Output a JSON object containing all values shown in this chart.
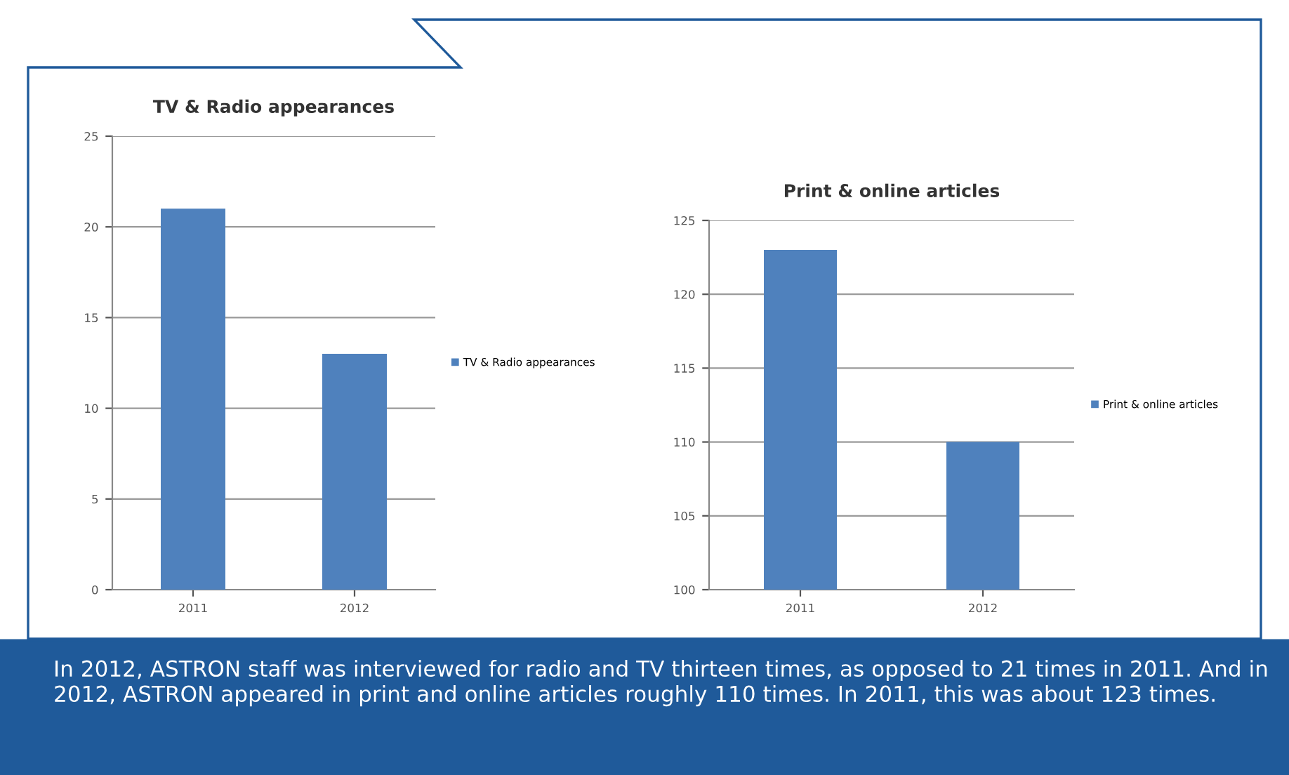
{
  "chart_data": [
    {
      "type": "bar",
      "title": "TV & Radio appearances",
      "categories": [
        "2011",
        "2012"
      ],
      "series": [
        {
          "name": "TV & Radio appearances",
          "color": "#4f81bd",
          "values": [
            21,
            13
          ]
        }
      ],
      "ylim": [
        0,
        25
      ],
      "yticks": [
        0,
        5,
        10,
        15,
        20,
        25
      ],
      "grid": "y",
      "legend": "right"
    },
    {
      "type": "bar",
      "title": "Print & online articles",
      "categories": [
        "2011",
        "2012"
      ],
      "series": [
        {
          "name": "Print & online articles",
          "color": "#4f81bd",
          "values": [
            123,
            110
          ]
        }
      ],
      "ylim": [
        100,
        125
      ],
      "yticks": [
        100,
        105,
        110,
        115,
        120,
        125
      ],
      "grid": "y",
      "legend": "right",
      "annotations": [
        "In 2012, ASTRON staff was interviewed for radio and TV thirteen times, as opposed to 21 times in 2011. And in 2012, ASTRON appeared in print and online articles roughly 110 times. In 2011, this was about 123 times."
      ]
    }
  ]
}
